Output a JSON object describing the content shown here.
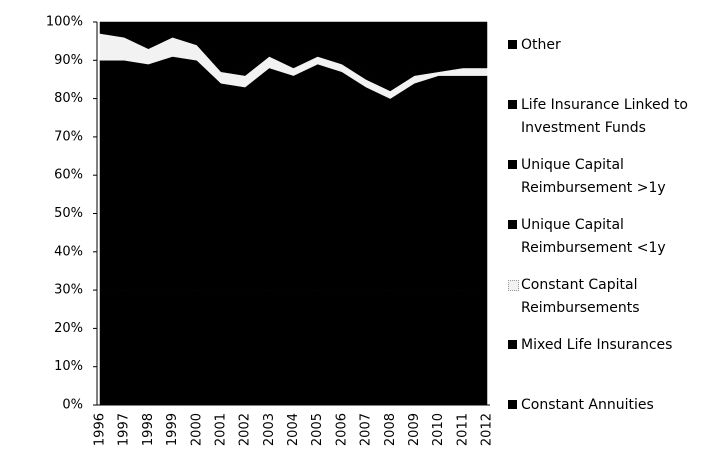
{
  "chart_data": {
    "type": "area",
    "stacked": true,
    "categories": [
      "1996",
      "1997",
      "1998",
      "1999",
      "2000",
      "2001",
      "2002",
      "2003",
      "2004",
      "2005",
      "2006",
      "2007",
      "2008",
      "2009",
      "2010",
      "2011",
      "2012"
    ],
    "series": [
      {
        "name": "Constant Annuities",
        "color": "#000000",
        "values": [
          30,
          30,
          30,
          30,
          30,
          30,
          30,
          30,
          30,
          30,
          30,
          30,
          30,
          30,
          30,
          30,
          30
        ]
      },
      {
        "name": "Mixed Life Insurances",
        "color": "#000000",
        "values": [
          60,
          60,
          59,
          61,
          60,
          54,
          53,
          58,
          56,
          59,
          57,
          53,
          50,
          54,
          56,
          56,
          56
        ]
      },
      {
        "name": "Constant Capital Reimbursements",
        "color": "#f2f2f2",
        "values": [
          7,
          6,
          4,
          5,
          4,
          3,
          3,
          3,
          2,
          2,
          2,
          2,
          2,
          2,
          1,
          2,
          2
        ]
      },
      {
        "name": "Unique Capital Reimbursement <1y",
        "color": "#000000",
        "values": [
          1,
          1,
          1,
          1,
          1,
          1,
          1,
          1,
          1,
          1,
          1,
          1,
          1,
          1,
          1,
          1,
          1
        ]
      },
      {
        "name": "Unique Capital Reimbursement >1y",
        "color": "#000000",
        "values": [
          1,
          1,
          1,
          1,
          1,
          1,
          1,
          1,
          1,
          1,
          1,
          1,
          1,
          1,
          1,
          1,
          1
        ]
      },
      {
        "name": "Life Insurance Linked to Investment Funds",
        "color": "#000000",
        "values": [
          0,
          1,
          4,
          1,
          3,
          10,
          11,
          6,
          9,
          6,
          8,
          12,
          15,
          11,
          10,
          9,
          9
        ]
      },
      {
        "name": "Other",
        "color": "#000000",
        "values": [
          1,
          1,
          1,
          1,
          1,
          1,
          1,
          1,
          1,
          1,
          1,
          1,
          1,
          1,
          1,
          1,
          1
        ]
      }
    ],
    "ylim": [
      0,
      100
    ],
    "yticks": [
      {
        "value": 0,
        "label": "0%"
      },
      {
        "value": 10,
        "label": "10%"
      },
      {
        "value": 20,
        "label": "20%"
      },
      {
        "value": 30,
        "label": "30%"
      },
      {
        "value": 40,
        "label": "40%"
      },
      {
        "value": 50,
        "label": "50%"
      },
      {
        "value": 60,
        "label": "60%"
      },
      {
        "value": 70,
        "label": "70%"
      },
      {
        "value": 80,
        "label": "80%"
      },
      {
        "value": 90,
        "label": "90%"
      },
      {
        "value": 100,
        "label": "100%"
      }
    ],
    "legend": "right"
  }
}
